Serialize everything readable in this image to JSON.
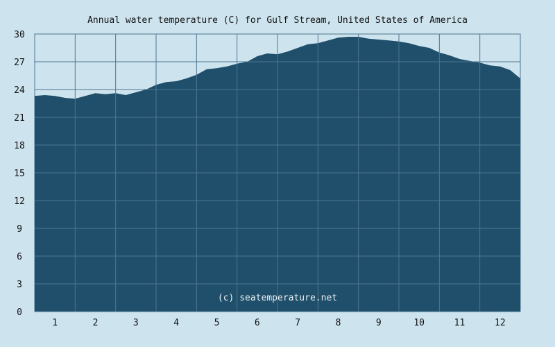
{
  "chart_data": {
    "type": "area",
    "title": "Annual water temperature (C) for Gulf Stream, United States of America",
    "xlabel": "",
    "ylabel": "",
    "watermark": "(c) seatemperature.net",
    "ylim": [
      0,
      30
    ],
    "yticks": [
      0,
      3,
      6,
      9,
      12,
      15,
      18,
      21,
      24,
      27,
      30
    ],
    "xlim": [
      1,
      13
    ],
    "month_labels": [
      "1",
      "2",
      "3",
      "4",
      "5",
      "6",
      "7",
      "8",
      "9",
      "10",
      "11",
      "12"
    ],
    "grid": true,
    "colors": {
      "fill": "#1f4f6b",
      "grid": "#4f7690",
      "background": "#cde3ee",
      "watermark": "#e8eef2"
    },
    "x": [
      1.0,
      1.25,
      1.5,
      1.75,
      2.0,
      2.25,
      2.5,
      2.75,
      3.0,
      3.25,
      3.5,
      3.75,
      4.0,
      4.25,
      4.5,
      4.75,
      5.0,
      5.25,
      5.5,
      5.75,
      6.0,
      6.25,
      6.5,
      6.75,
      7.0,
      7.25,
      7.5,
      7.75,
      8.0,
      8.25,
      8.5,
      8.75,
      9.0,
      9.25,
      9.5,
      9.75,
      10.0,
      10.25,
      10.5,
      10.75,
      11.0,
      11.25,
      11.5,
      11.75,
      12.0,
      12.25,
      12.5,
      12.75,
      13.0
    ],
    "values": [
      23.3,
      23.4,
      23.3,
      23.1,
      23.0,
      23.3,
      23.6,
      23.5,
      23.6,
      23.4,
      23.7,
      24.0,
      24.5,
      24.8,
      24.9,
      25.2,
      25.6,
      26.2,
      26.3,
      26.5,
      26.8,
      27.0,
      27.6,
      27.9,
      27.8,
      28.1,
      28.5,
      28.9,
      29.0,
      29.3,
      29.6,
      29.7,
      29.7,
      29.5,
      29.4,
      29.3,
      29.2,
      29.0,
      28.7,
      28.5,
      28.0,
      27.7,
      27.3,
      27.1,
      26.9,
      26.6,
      26.5,
      26.1,
      25.2
    ]
  }
}
